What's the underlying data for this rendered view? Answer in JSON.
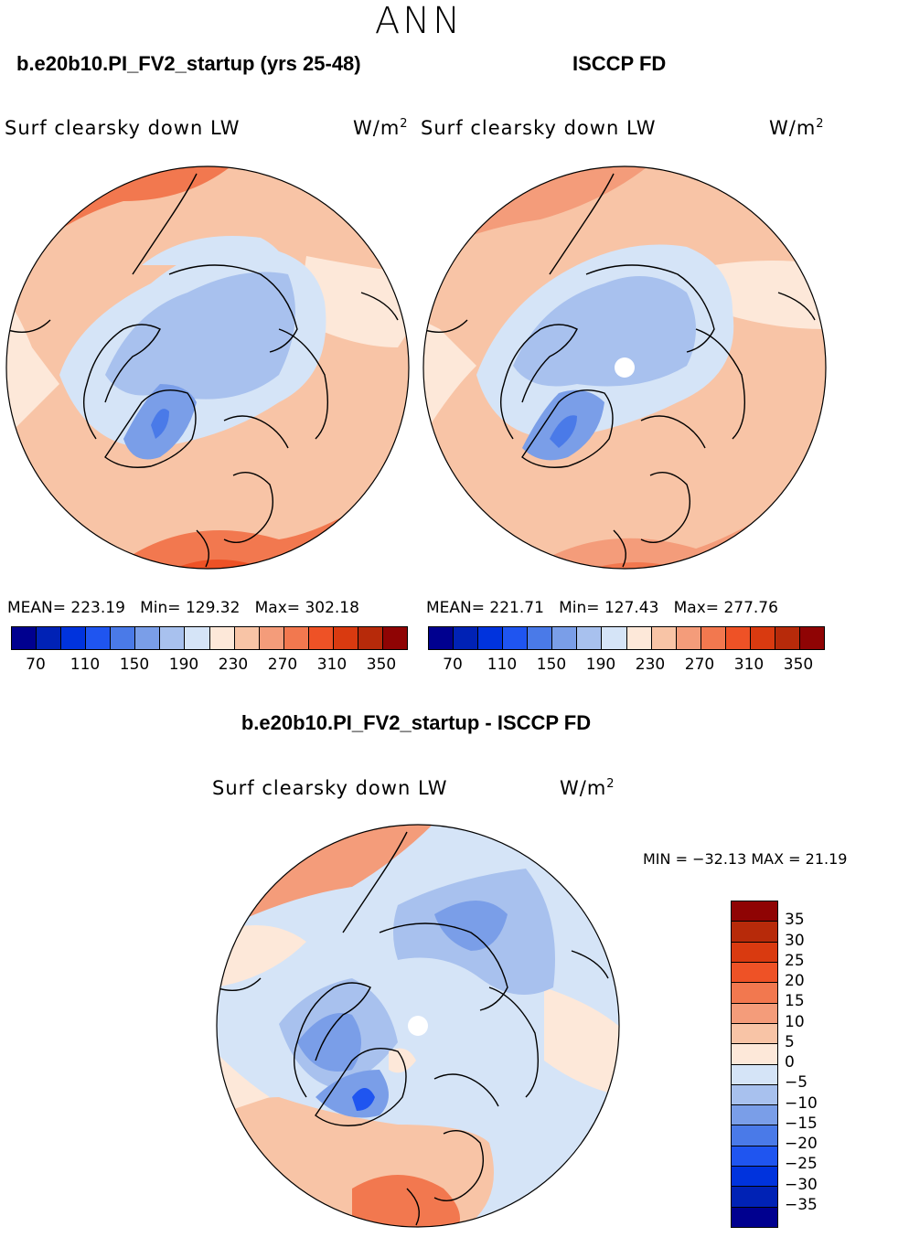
{
  "page_title": "ANN",
  "panels": [
    {
      "title": "b.e20b10.PI_FV2_startup (yrs 25-48)",
      "variable": "Surf clearsky down LW",
      "units": "W/m",
      "units_sup": "2",
      "mean_label": "MEAN=",
      "mean": "223.19",
      "min_label": "Min=",
      "min": "129.32",
      "max_label": "Max=",
      "max": "302.18"
    },
    {
      "title": "ISCCP FD",
      "variable": "Surf clearsky down LW",
      "units": "W/m",
      "units_sup": "2",
      "mean_label": "MEAN=",
      "mean": "221.71",
      "min_label": "Min=",
      "min": "127.43",
      "max_label": "Max=",
      "max": "277.76"
    }
  ],
  "colorbar_top": {
    "colors": [
      "#00008f",
      "#0022b5",
      "#0033dd",
      "#1f55f0",
      "#4a7ae8",
      "#7a9ee8",
      "#a8c1ee",
      "#d5e4f7",
      "#fde8d9",
      "#f8c4a6",
      "#f49c7a",
      "#f2784f",
      "#ee5226",
      "#d93a10",
      "#b72a0a",
      "#8f0404"
    ],
    "ticks": [
      "70",
      "110",
      "150",
      "190",
      "230",
      "270",
      "310",
      "350"
    ]
  },
  "diff_panel": {
    "title": "b.e20b10.PI_FV2_startup - ISCCP FD",
    "variable": "Surf clearsky down LW",
    "units": "W/m",
    "units_sup": "2",
    "minmax_text": "MIN = −32.13 MAX =  21.19"
  },
  "colorbar_diff": {
    "colors_top_to_bottom": [
      "#8f0404",
      "#b72a0a",
      "#d93a10",
      "#ee5226",
      "#f2784f",
      "#f49c7a",
      "#f8c4a6",
      "#fde8d9",
      "#d5e4f7",
      "#a8c1ee",
      "#7a9ee8",
      "#4a7ae8",
      "#1f55f0",
      "#0033dd",
      "#0022b5",
      "#00008f"
    ],
    "ticks": [
      "35",
      "30",
      "25",
      "20",
      "15",
      "10",
      "5",
      "0",
      "−5",
      "−10",
      "−15",
      "−20",
      "−25",
      "−30",
      "−35"
    ]
  },
  "chart_data": [
    {
      "type": "heatmap",
      "title": "b.e20b10.PI_FV2_startup (yrs 25-48)",
      "subtitle": "Surf clearsky down LW (W/m2), ANN, north polar projection",
      "colorbar_levels": [
        70,
        90,
        110,
        130,
        150,
        170,
        190,
        210,
        230,
        250,
        270,
        290,
        310,
        330,
        350
      ],
      "stats": {
        "mean": 223.19,
        "min": 129.32,
        "max": 302.18
      }
    },
    {
      "type": "heatmap",
      "title": "ISCCP FD",
      "subtitle": "Surf clearsky down LW (W/m2), ANN, north polar projection",
      "colorbar_levels": [
        70,
        90,
        110,
        130,
        150,
        170,
        190,
        210,
        230,
        250,
        270,
        290,
        310,
        330,
        350
      ],
      "stats": {
        "mean": 221.71,
        "min": 127.43,
        "max": 277.76
      }
    },
    {
      "type": "heatmap",
      "title": "b.e20b10.PI_FV2_startup - ISCCP FD",
      "subtitle": "Surf clearsky down LW (W/m2) difference",
      "colorbar_levels": [
        -35,
        -30,
        -25,
        -20,
        -15,
        -10,
        -5,
        0,
        5,
        10,
        15,
        20,
        25,
        30,
        35
      ],
      "stats": {
        "min": -32.13,
        "max": 21.19
      }
    }
  ]
}
